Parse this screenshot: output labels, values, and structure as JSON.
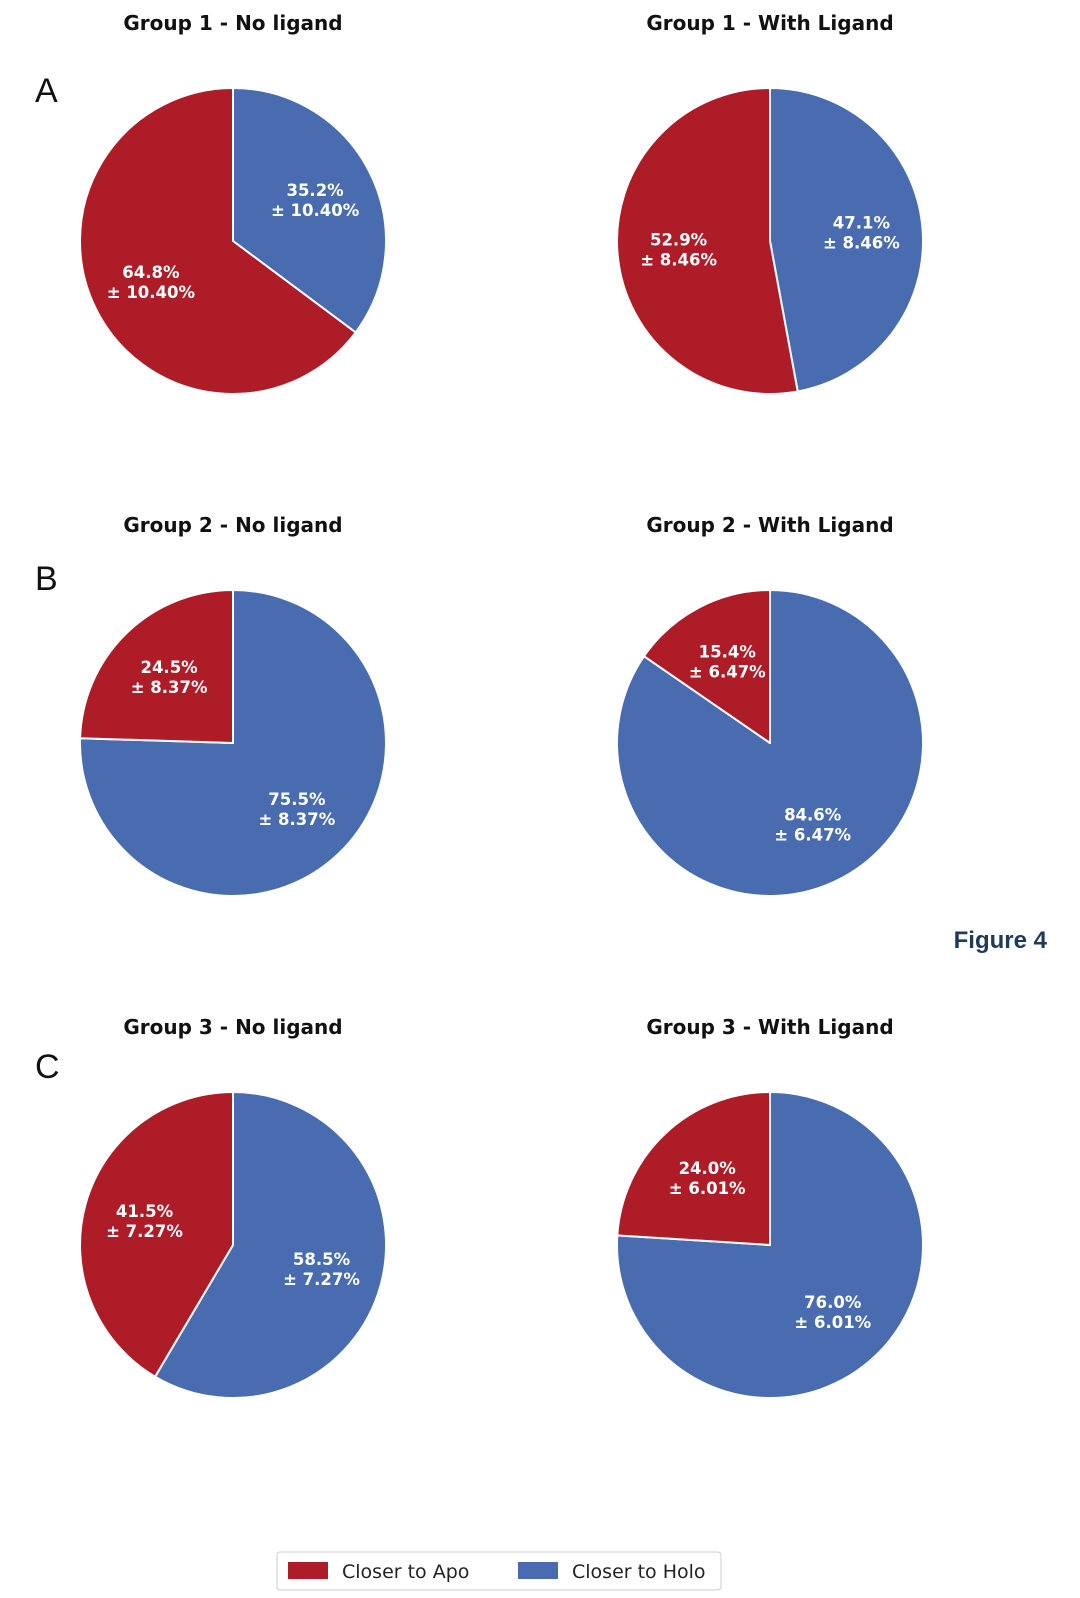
{
  "figure_label": "Figure 4",
  "colors": {
    "apo": "#ae1c28",
    "holo": "#486caf"
  },
  "legend": {
    "apo_label": "Closer to Apo",
    "holo_label": "Closer to Holo"
  },
  "panels": [
    "A",
    "B",
    "C"
  ],
  "chart_data": [
    {
      "type": "pie",
      "title": "Group 1 - No ligand",
      "categories": [
        "Closer to Apo",
        "Closer to Holo"
      ],
      "values": [
        64.8,
        35.2
      ],
      "errors": [
        10.4,
        10.4
      ],
      "labels": [
        [
          "64.8%",
          "± 10.40%"
        ],
        [
          "35.2%",
          "± 10.40%"
        ]
      ]
    },
    {
      "type": "pie",
      "title": "Group 1 - With Ligand",
      "categories": [
        "Closer to Apo",
        "Closer to Holo"
      ],
      "values": [
        52.9,
        47.1
      ],
      "errors": [
        8.46,
        8.46
      ],
      "labels": [
        [
          "52.9%",
          "± 8.46%"
        ],
        [
          "47.1%",
          "± 8.46%"
        ]
      ]
    },
    {
      "type": "pie",
      "title": "Group 2 - No ligand",
      "categories": [
        "Closer to Apo",
        "Closer to Holo"
      ],
      "values": [
        24.5,
        75.5
      ],
      "errors": [
        8.37,
        8.37
      ],
      "labels": [
        [
          "24.5%",
          "± 8.37%"
        ],
        [
          "75.5%",
          "± 8.37%"
        ]
      ]
    },
    {
      "type": "pie",
      "title": "Group 2 - With Ligand",
      "categories": [
        "Closer to Apo",
        "Closer to Holo"
      ],
      "values": [
        15.4,
        84.6
      ],
      "errors": [
        6.47,
        6.47
      ],
      "labels": [
        [
          "15.4%",
          "± 6.47%"
        ],
        [
          "84.6%",
          "± 6.47%"
        ]
      ]
    },
    {
      "type": "pie",
      "title": "Group 3 - No ligand",
      "categories": [
        "Closer to Apo",
        "Closer to Holo"
      ],
      "values": [
        41.5,
        58.5
      ],
      "errors": [
        7.27,
        7.27
      ],
      "labels": [
        [
          "41.5%",
          "± 7.27%"
        ],
        [
          "58.5%",
          "± 7.27%"
        ]
      ]
    },
    {
      "type": "pie",
      "title": "Group 3 - With Ligand",
      "categories": [
        "Closer to Apo",
        "Closer to Holo"
      ],
      "values": [
        24.0,
        76.0
      ],
      "errors": [
        6.01,
        6.01
      ],
      "labels": [
        [
          "24.0%",
          "± 6.01%"
        ],
        [
          "76.0%",
          "± 6.01%"
        ]
      ]
    }
  ]
}
